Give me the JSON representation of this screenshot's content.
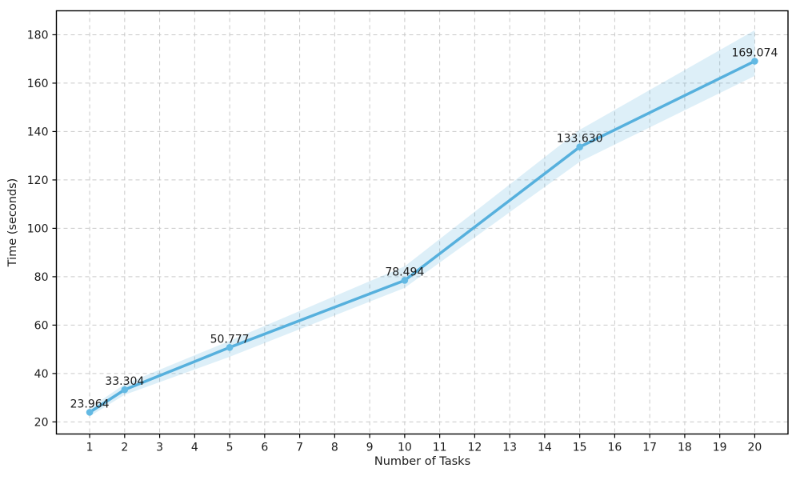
{
  "figure": {
    "background_color": "#ffffff",
    "spine_color": "#000000",
    "text_color": "#1a1a1a"
  },
  "chart_data": {
    "type": "line",
    "title": "",
    "xlabel": "Number of Tasks",
    "ylabel": "Time (seconds)",
    "x": [
      1,
      2,
      5,
      10,
      15,
      20
    ],
    "values": [
      23.964,
      33.304,
      50.777,
      78.494,
      133.63,
      169.074
    ],
    "point_labels": [
      "23.964",
      "33.304",
      "50.777",
      "78.494",
      "133.630",
      "169.074"
    ],
    "band_lower": [
      22.3,
      31.2,
      46.9,
      75.4,
      127.5,
      163.0
    ],
    "band_upper": [
      25.7,
      35.6,
      53.5,
      84.3,
      140.7,
      181.9
    ],
    "xticks": [
      1,
      2,
      3,
      4,
      5,
      6,
      7,
      8,
      9,
      10,
      11,
      12,
      13,
      14,
      15,
      16,
      17,
      18,
      19,
      20
    ],
    "yticks": [
      20,
      40,
      60,
      80,
      100,
      120,
      140,
      160,
      180
    ],
    "xlim": [
      0.05,
      20.95
    ],
    "ylim": [
      15.0,
      189.9
    ],
    "grid": true,
    "grid_style": "dashed",
    "grid_color": "#c9c9c9",
    "legend": null,
    "line_color": "#56b0dd",
    "marker": "o",
    "marker_color": "#63b9e3",
    "band_fill_color": "#56b0dd",
    "band_fill_opacity": 0.2
  }
}
